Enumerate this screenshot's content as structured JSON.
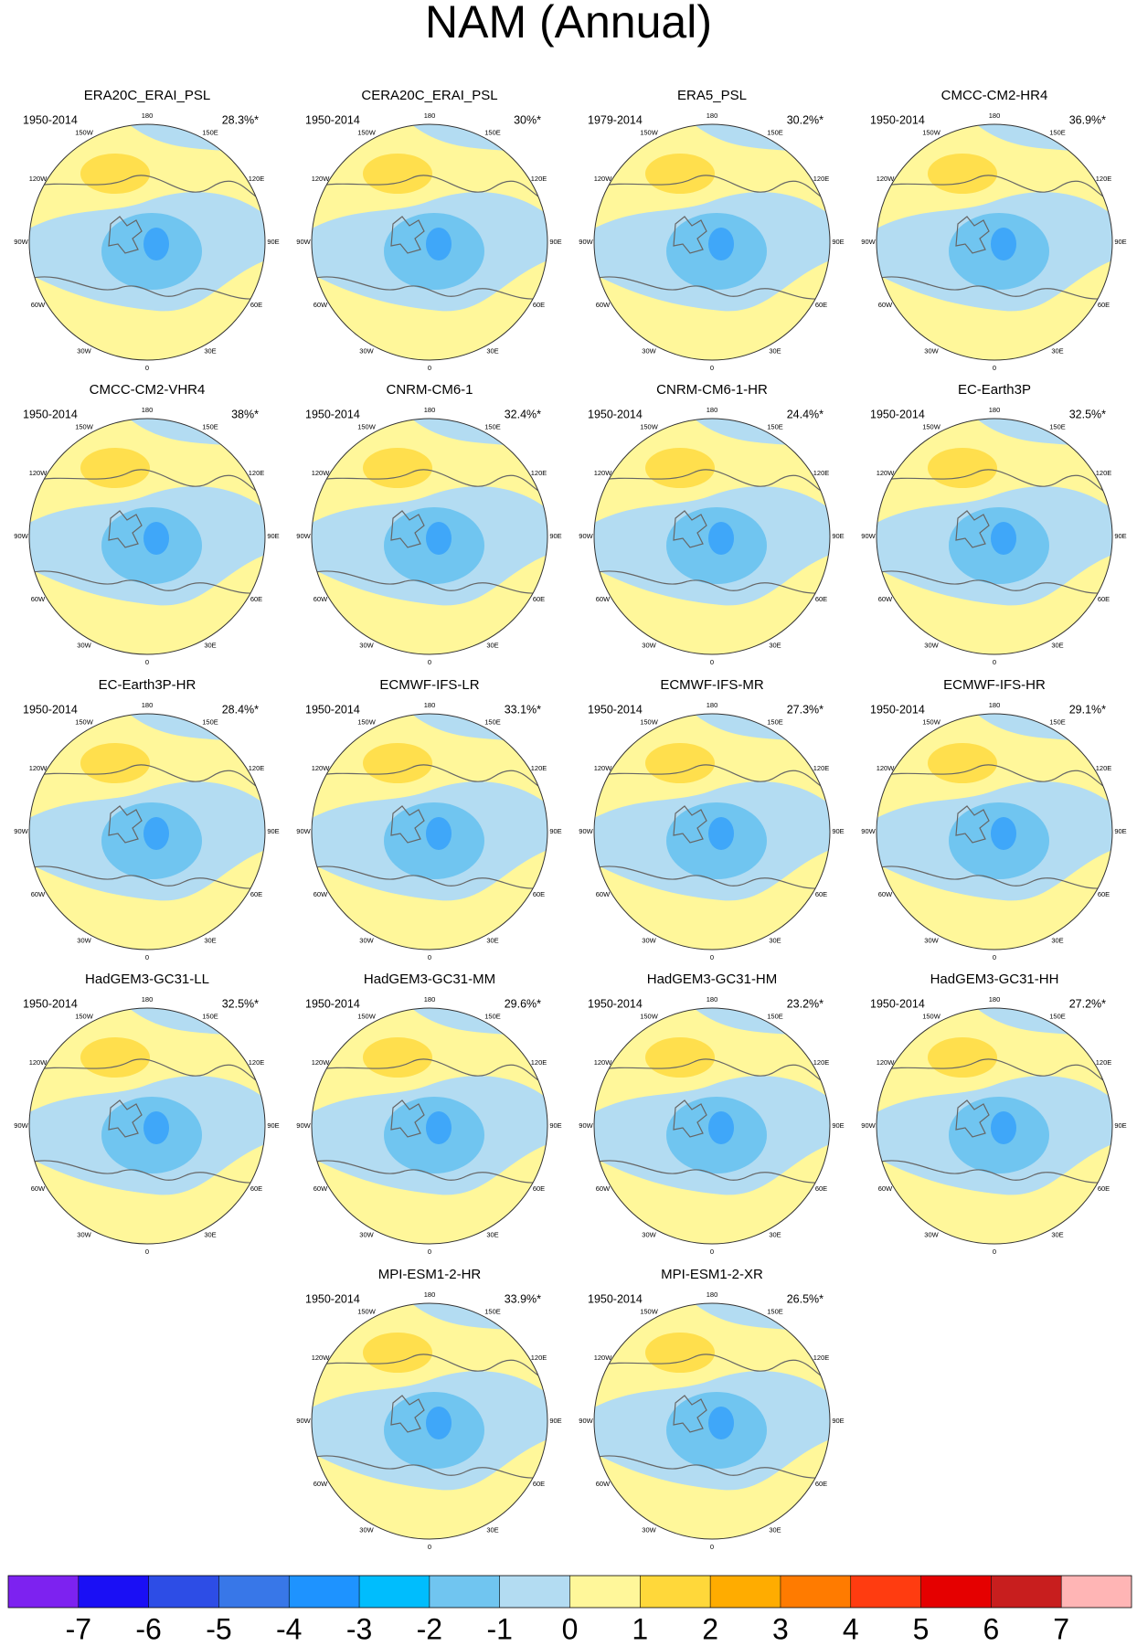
{
  "title": "NAM (Annual)",
  "longitude_labels": [
    "180",
    "150E",
    "120E",
    "90E",
    "60E",
    "30E",
    "0",
    "30W",
    "60W",
    "90W",
    "120W",
    "150W"
  ],
  "panels": [
    {
      "name": "ERA20C_ERAI_PSL",
      "period": "1950-2014",
      "percent": "28.3%*"
    },
    {
      "name": "CERA20C_ERAI_PSL",
      "period": "1950-2014",
      "percent": "30%*"
    },
    {
      "name": "ERA5_PSL",
      "period": "1979-2014",
      "percent": "30.2%*"
    },
    {
      "name": "CMCC-CM2-HR4",
      "period": "1950-2014",
      "percent": "36.9%*"
    },
    {
      "name": "CMCC-CM2-VHR4",
      "period": "1950-2014",
      "percent": "38%*"
    },
    {
      "name": "CNRM-CM6-1",
      "period": "1950-2014",
      "percent": "32.4%*"
    },
    {
      "name": "CNRM-CM6-1-HR",
      "period": "1950-2014",
      "percent": "24.4%*"
    },
    {
      "name": "EC-Earth3P",
      "period": "1950-2014",
      "percent": "32.5%*"
    },
    {
      "name": "EC-Earth3P-HR",
      "period": "1950-2014",
      "percent": "28.4%*"
    },
    {
      "name": "ECMWF-IFS-LR",
      "period": "1950-2014",
      "percent": "33.1%*"
    },
    {
      "name": "ECMWF-IFS-MR",
      "period": "1950-2014",
      "percent": "27.3%*"
    },
    {
      "name": "ECMWF-IFS-HR",
      "period": "1950-2014",
      "percent": "29.1%*"
    },
    {
      "name": "HadGEM3-GC31-LL",
      "period": "1950-2014",
      "percent": "32.5%*"
    },
    {
      "name": "HadGEM3-GC31-MM",
      "period": "1950-2014",
      "percent": "29.6%*"
    },
    {
      "name": "HadGEM3-GC31-HM",
      "period": "1950-2014",
      "percent": "23.2%*"
    },
    {
      "name": "HadGEM3-GC31-HH",
      "period": "1950-2014",
      "percent": "27.2%*"
    },
    {
      "name": "MPI-ESM1-2-HR",
      "period": "1950-2014",
      "percent": "33.9%*"
    },
    {
      "name": "MPI-ESM1-2-XR",
      "period": "1950-2014",
      "percent": "26.5%*"
    }
  ],
  "colorbar": {
    "colors": [
      "#7d22f0",
      "#1a0ff5",
      "#2d4de6",
      "#3877e8",
      "#1e93ff",
      "#00bdfd",
      "#70c5f0",
      "#b3dcf2",
      "#fff79a",
      "#ffd83a",
      "#ffac00",
      "#ff7b00",
      "#ff3c10",
      "#e50000",
      "#c81e1e",
      "#ffb5b5"
    ],
    "ticks": [
      -7,
      -6,
      -5,
      -4,
      -3,
      -2,
      -1,
      0,
      1,
      2,
      3,
      4,
      5,
      6,
      7
    ]
  }
}
